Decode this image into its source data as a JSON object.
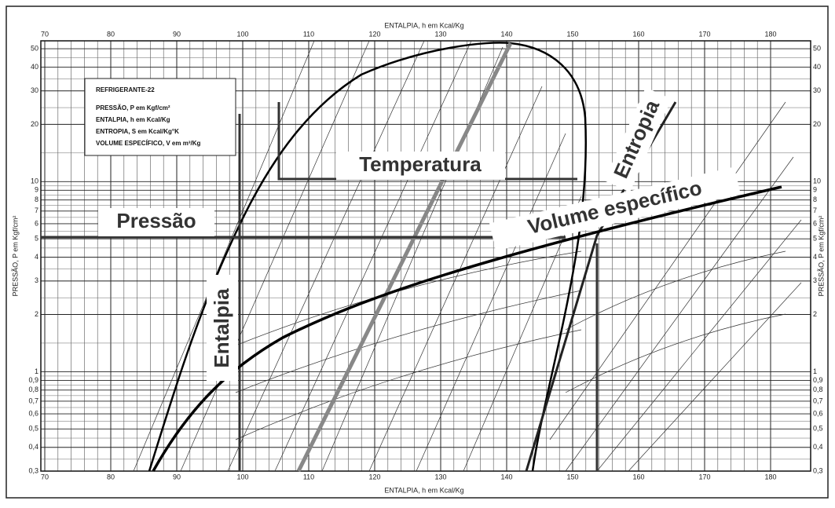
{
  "chart_data": {
    "type": "line",
    "ylog": true,
    "grid": true,
    "x_label_top": "ENTALPIA, h em Kcal/Kg",
    "x_label_bottom": "ENTALPIA, h em Kcal/Kg",
    "y_label_left": "PRESSÃO, P em Kgf/cm²",
    "y_label_right": "PRESSÃO, P em Kgf/cm²",
    "legend_box": [
      "REFRIGERANTE-22",
      "PRESSÃO, P em Kgf/cm²",
      "ENTALPIA, h em Kcal/Kg",
      "ENTROPIA, S em Kcal/Kg°K",
      "VOLUME ESPECÍFICO, V em m³/Kg"
    ],
    "annotations": {
      "temperature": "Temperatura",
      "pressure": "Pressão",
      "enthalpy": "Entalpia",
      "entropy": "Entropia",
      "volume": "Volume específico"
    },
    "xlim": [
      70,
      185
    ],
    "xticks": [
      70,
      80,
      90,
      100,
      110,
      120,
      130,
      140,
      150,
      160,
      170,
      180
    ],
    "ylim": [
      0.3,
      55
    ],
    "yticks": [
      {
        "value": 0.3,
        "label": "0,3"
      },
      {
        "value": 0.4,
        "label": "0,4"
      },
      {
        "value": 0.5,
        "label": "0,5"
      },
      {
        "value": 0.6,
        "label": "0,6"
      },
      {
        "value": 0.7,
        "label": "0,7"
      },
      {
        "value": 0.8,
        "label": "0,8"
      },
      {
        "value": 0.9,
        "label": "0,9"
      },
      1,
      2,
      3,
      4,
      5,
      6,
      7,
      8,
      9,
      10,
      20,
      30,
      40,
      50
    ]
  }
}
